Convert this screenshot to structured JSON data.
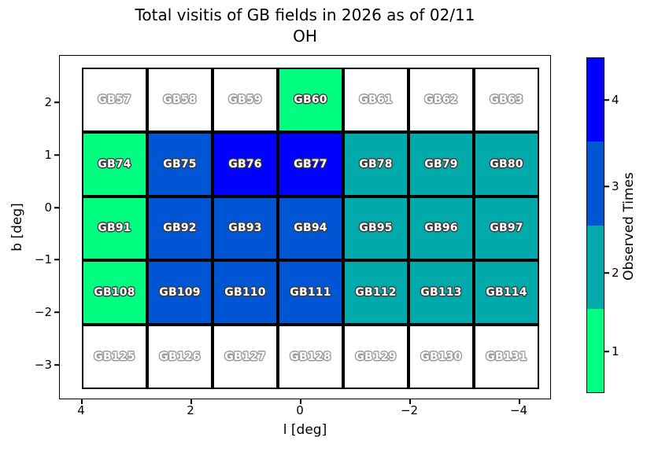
{
  "title": "Total visitis of GB fields in 2026 as of 02/11",
  "subtitle": "OH",
  "axes": {
    "xlabel": "l [deg]",
    "ylabel": "b [deg]",
    "xticks": [
      "4",
      "2",
      "0",
      "−2",
      "−4"
    ],
    "yticks": [
      "2",
      "1",
      "0",
      "−1",
      "−2",
      "−3"
    ]
  },
  "colorbar": {
    "label": "Observed Times",
    "ticks": [
      "4",
      "3",
      "2",
      "1"
    ],
    "segment_colors_top_to_bottom": [
      "#0000ff",
      "#0055d5",
      "#00aaaa",
      "#00ff80"
    ]
  },
  "chart_data": {
    "type": "heatmap",
    "title": "Total visitis of GB fields in 2026 as of 02/11 OH",
    "xlabel": "l [deg]",
    "ylabel": "b [deg]",
    "value_label": "Observed Times",
    "xlim": [
      4.4,
      -4.6
    ],
    "ylim": [
      -3.45,
      2.65
    ],
    "color_scale": {
      "0": "#ffffff",
      "1": "#00ff80",
      "2": "#00aaaa",
      "3": "#0055d5",
      "4": "#0000ff"
    },
    "rows": [
      {
        "fields": [
          "GB57",
          "GB58",
          "GB59",
          "GB60",
          "GB61",
          "GB62",
          "GB63"
        ],
        "observed": [
          0,
          0,
          0,
          1,
          0,
          0,
          0
        ]
      },
      {
        "fields": [
          "GB74",
          "GB75",
          "GB76",
          "GB77",
          "GB78",
          "GB79",
          "GB80"
        ],
        "observed": [
          1,
          3,
          4,
          4,
          2,
          2,
          2
        ]
      },
      {
        "fields": [
          "GB91",
          "GB92",
          "GB93",
          "GB94",
          "GB95",
          "GB96",
          "GB97"
        ],
        "observed": [
          1,
          3,
          3,
          3,
          2,
          2,
          2
        ]
      },
      {
        "fields": [
          "GB108",
          "GB109",
          "GB110",
          "GB111",
          "GB112",
          "GB113",
          "GB114"
        ],
        "observed": [
          1,
          3,
          3,
          3,
          2,
          2,
          2
        ]
      },
      {
        "fields": [
          "GB125",
          "GB126",
          "GB127",
          "GB128",
          "GB129",
          "GB130",
          "GB131"
        ],
        "observed": [
          0,
          0,
          0,
          0,
          0,
          0,
          0
        ]
      }
    ]
  }
}
